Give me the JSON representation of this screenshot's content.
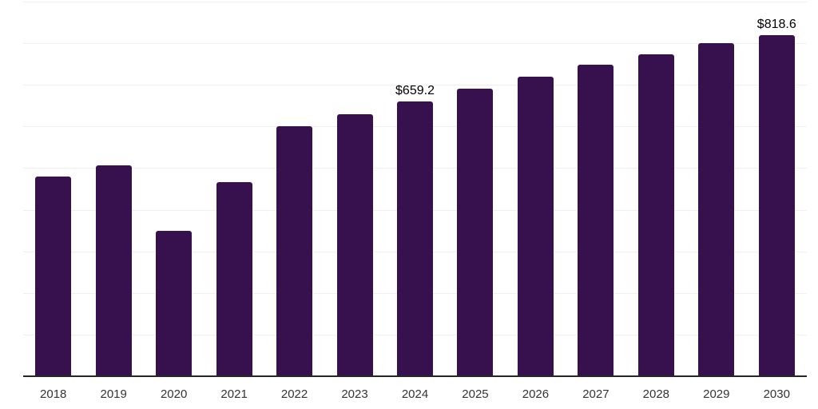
{
  "chart_data": {
    "type": "bar",
    "title": "",
    "xlabel": "",
    "ylabel": "",
    "categories": [
      "2018",
      "2019",
      "2020",
      "2021",
      "2022",
      "2023",
      "2024",
      "2025",
      "2026",
      "2027",
      "2028",
      "2029",
      "2030"
    ],
    "values": [
      480,
      506,
      350,
      466,
      600,
      630,
      659.2,
      690,
      720,
      748,
      774,
      801,
      818.6
    ],
    "data_labels": {
      "2024": "$659.2",
      "2030": "$818.6"
    },
    "ylim": [
      0,
      900
    ],
    "grid_step": 100,
    "grid": "horizontal-only",
    "legend": "none",
    "y_tick_labels_visible": false,
    "colors": {
      "bar": "#36114E",
      "gridline": "#F0F0F0",
      "axis_line": "#262626",
      "x_tick_label": "#333333",
      "data_label": "#000000",
      "background": "#FFFFFF"
    }
  }
}
